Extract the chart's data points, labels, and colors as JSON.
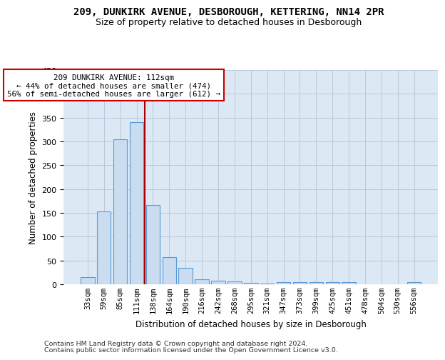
{
  "title1": "209, DUNKIRK AVENUE, DESBOROUGH, KETTERING, NN14 2PR",
  "title2": "Size of property relative to detached houses in Desborough",
  "xlabel": "Distribution of detached houses by size in Desborough",
  "ylabel": "Number of detached properties",
  "categories": [
    "33sqm",
    "59sqm",
    "85sqm",
    "111sqm",
    "138sqm",
    "164sqm",
    "190sqm",
    "216sqm",
    "242sqm",
    "268sqm",
    "295sqm",
    "321sqm",
    "347sqm",
    "373sqm",
    "399sqm",
    "425sqm",
    "451sqm",
    "478sqm",
    "504sqm",
    "530sqm",
    "556sqm"
  ],
  "values": [
    15,
    153,
    305,
    340,
    167,
    57,
    35,
    10,
    8,
    6,
    3,
    2,
    5,
    5,
    5,
    5,
    5,
    0,
    0,
    0,
    5
  ],
  "bar_color": "#c9dcf0",
  "bar_edge_color": "#5b9bd5",
  "bg_axes_color": "#dde8f5",
  "background_color": "#ffffff",
  "vline_color": "#aa0000",
  "ann_line1": "209 DUNKIRK AVENUE: 112sqm",
  "ann_line2": "← 44% of detached houses are smaller (474)",
  "ann_line3": "56% of semi-detached houses are larger (612) →",
  "ann_box_fc": "#ffffff",
  "ann_box_ec": "#cc0000",
  "footer1": "Contains HM Land Registry data © Crown copyright and database right 2024.",
  "footer2": "Contains public sector information licensed under the Open Government Licence v3.0.",
  "ylim": [
    0,
    450
  ],
  "yticks": [
    0,
    50,
    100,
    150,
    200,
    250,
    300,
    350,
    400,
    450
  ],
  "vline_index": 3.5
}
